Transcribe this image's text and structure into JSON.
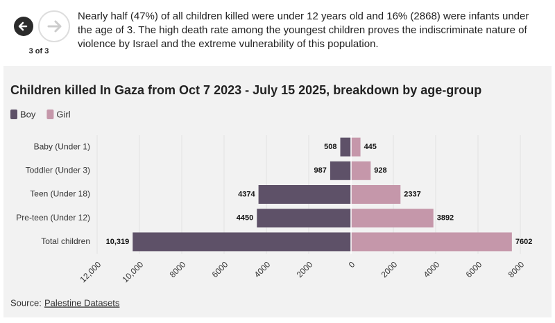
{
  "nav": {
    "counter": "3 of 3"
  },
  "intro": "Nearly half (47%) of all children killed were under 12 years old and 16% (2868) were infants under the age of 3. The high death rate among the youngest children proves the indiscriminate nature of violence by Israel and the extreme vulnerability of this population.",
  "chart_data": {
    "type": "bar",
    "title": "Children killed In Gaza from Oct 7 2023 - July 15 2025, breakdown by age-group",
    "categories": [
      "Baby (Under 1)",
      "Toddler (Under 3)",
      "Teen (Under 18)",
      "Pre-teen (Under 12)",
      "Total children"
    ],
    "series": [
      {
        "name": "Boy",
        "color": "#5e5168",
        "values": [
          508,
          987,
          4374,
          4450,
          10319
        ],
        "value_labels": [
          "508",
          "987",
          "4374",
          "4450",
          "10,319"
        ]
      },
      {
        "name": "Girl",
        "color": "#c597aa",
        "values": [
          445,
          928,
          2337,
          3892,
          7602
        ]
      }
    ],
    "xlim": [
      -12000,
      8000
    ],
    "xticks": [
      {
        "value": -12000,
        "label": "12,000"
      },
      {
        "value": -10000,
        "label": "10,000"
      },
      {
        "value": -8000,
        "label": "8000"
      },
      {
        "value": -6000,
        "label": "6000"
      },
      {
        "value": -4000,
        "label": "4000"
      },
      {
        "value": -2000,
        "label": "2000"
      },
      0,
      2000,
      4000,
      6000,
      8000
    ],
    "grid": true,
    "source_label": "Source:",
    "source_link": "Palestine Datasets"
  }
}
